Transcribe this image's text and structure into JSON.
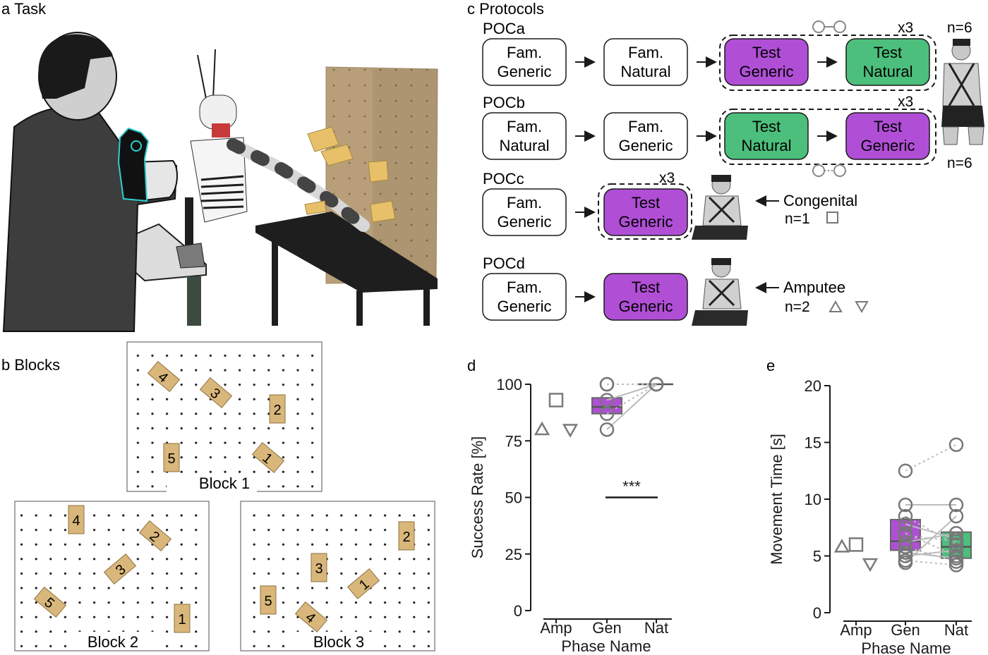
{
  "panels": {
    "a": {
      "label": "a Task"
    },
    "b": {
      "label": "b Blocks",
      "blocks": [
        "Block 1",
        "Block 2",
        "Block 3"
      ]
    },
    "c": {
      "label": "c Protocols"
    },
    "d": {
      "label": "d"
    },
    "e": {
      "label": "e"
    }
  },
  "protocols": [
    {
      "name": "POCa",
      "steps": [
        "Fam. Generic",
        "Fam. Natural",
        "Test Generic",
        "Test Natural"
      ],
      "repeat": "x3",
      "n": "n=6"
    },
    {
      "name": "POCb",
      "steps": [
        "Fam. Natural",
        "Fam. Generic",
        "Test Natural",
        "Test Generic"
      ],
      "repeat": "x3",
      "n": "n=6"
    },
    {
      "name": "POCc",
      "steps": [
        "Fam. Generic",
        "Test Generic"
      ],
      "repeat": "x3",
      "group": "Congenital",
      "n": "n=1"
    },
    {
      "name": "POCd",
      "steps": [
        "Fam. Generic",
        "Test Generic"
      ],
      "group": "Amputee",
      "n": "n=2"
    }
  ],
  "colors": {
    "generic": "#b04fd6",
    "natural": "#4cbf7c",
    "block": "#d9b77a",
    "marker": "#7a7a7a"
  },
  "chart_data": [
    {
      "type": "box",
      "panel": "d",
      "ylabel": "Success Rate [%]",
      "xlabel": "Phase Name",
      "categories": [
        "Amp",
        "Gen",
        "Nat"
      ],
      "ylim": [
        0,
        100
      ],
      "yticks": [
        0,
        25,
        50,
        75,
        100
      ],
      "significance": "***",
      "amputee_points": [
        {
          "marker": "triangle-up",
          "y": 80
        },
        {
          "marker": "square",
          "y": 93
        },
        {
          "marker": "triangle-down",
          "y": 80
        }
      ],
      "gen_box": {
        "q1": 87,
        "median": 90,
        "q3": 94
      },
      "paired": [
        {
          "gen": 100,
          "nat": 100
        },
        {
          "gen": 93,
          "nat": 100
        },
        {
          "gen": 87,
          "nat": 100
        },
        {
          "gen": 80,
          "nat": 100
        },
        {
          "gen": 100,
          "nat": 100
        }
      ]
    },
    {
      "type": "box",
      "panel": "e",
      "ylabel": "Movement Time [s]",
      "xlabel": "Phase Name",
      "categories": [
        "Amp",
        "Gen",
        "Nat"
      ],
      "ylim": [
        0,
        20
      ],
      "yticks": [
        0,
        5,
        10,
        15,
        20
      ],
      "amputee_points": [
        {
          "marker": "triangle-up",
          "y": 5.8
        },
        {
          "marker": "square",
          "y": 6.0
        },
        {
          "marker": "triangle-down",
          "y": 4.3
        }
      ],
      "gen_box": {
        "q1": 5.5,
        "median": 6.3,
        "q3": 8.2
      },
      "nat_box": {
        "q1": 4.8,
        "median": 5.8,
        "q3": 7.1
      },
      "paired": [
        {
          "gen": 12.5,
          "nat": 14.8
        },
        {
          "gen": 9.5,
          "nat": 9.5
        },
        {
          "gen": 8.5,
          "nat": 6.0
        },
        {
          "gen": 7.8,
          "nat": 6.5
        },
        {
          "gen": 7.0,
          "nat": 5.0
        },
        {
          "gen": 6.2,
          "nat": 7.0
        },
        {
          "gen": 5.8,
          "nat": 4.5
        },
        {
          "gen": 5.0,
          "nat": 5.5
        },
        {
          "gen": 4.6,
          "nat": 4.2
        },
        {
          "gen": 4.4,
          "nat": 8.5
        },
        {
          "gen": 6.8,
          "nat": 6.3
        },
        {
          "gen": 5.3,
          "nat": 4.8
        }
      ]
    }
  ]
}
